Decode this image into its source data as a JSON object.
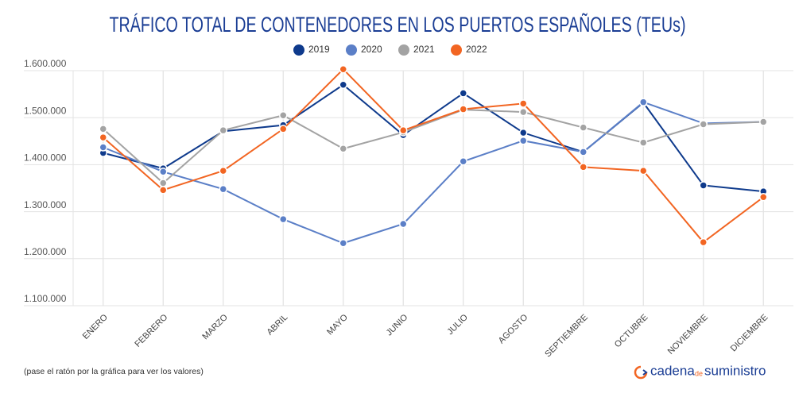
{
  "chart_data": {
    "type": "line",
    "title": "TRÁFICO TOTAL DE CONTENEDORES EN LOS PUERTOS ESPAÑOLES (TEUs)",
    "categories": [
      "ENERO",
      "FEBRERO",
      "MARZO",
      "ABRIL",
      "MAYO",
      "JUNIO",
      "JULIO",
      "AGOSTO",
      "SEPTIEMBRE",
      "OCTUBRE",
      "NOVIEMBRE",
      "DICIEMBRE"
    ],
    "series": [
      {
        "name": "2019",
        "color": "#0e3a8c",
        "values": [
          1425000,
          1392000,
          1471000,
          1484000,
          1570000,
          1463000,
          1552000,
          1468000,
          1427000,
          1532000,
          1356000,
          1343000
        ]
      },
      {
        "name": "2020",
        "color": "#5b7fc7",
        "values": [
          1437000,
          1385000,
          1348000,
          1284000,
          1233000,
          1274000,
          1407000,
          1451000,
          1427000,
          1533000,
          1488000,
          1491000
        ]
      },
      {
        "name": "2021",
        "color": "#a3a3a3",
        "values": [
          1476000,
          1361000,
          1473000,
          1505000,
          1434000,
          1469000,
          1517000,
          1512000,
          1479000,
          1447000,
          1486000,
          1491000
        ]
      },
      {
        "name": "2022",
        "color": "#f26522",
        "values": [
          1458000,
          1346000,
          1387000,
          1476000,
          1603000,
          1473000,
          1518000,
          1530000,
          1395000,
          1387000,
          1235000,
          1331000
        ]
      }
    ],
    "ylim": [
      1100000,
      1600000
    ],
    "yticks": [
      {
        "value": 1100000,
        "label": "1.100.000"
      },
      {
        "value": 1200000,
        "label": "1.200.000"
      },
      {
        "value": 1300000,
        "label": "1.300.000"
      },
      {
        "value": 1400000,
        "label": "1.400.000"
      },
      {
        "value": 1500000,
        "label": "1.500.000"
      },
      {
        "value": 1600000,
        "label": "1.600.000"
      }
    ],
    "grid": true
  },
  "footer": {
    "note": "(pase el ratón por la gráfica para ver los valores)",
    "logo": [
      "cadena",
      "de",
      "suministro"
    ]
  }
}
